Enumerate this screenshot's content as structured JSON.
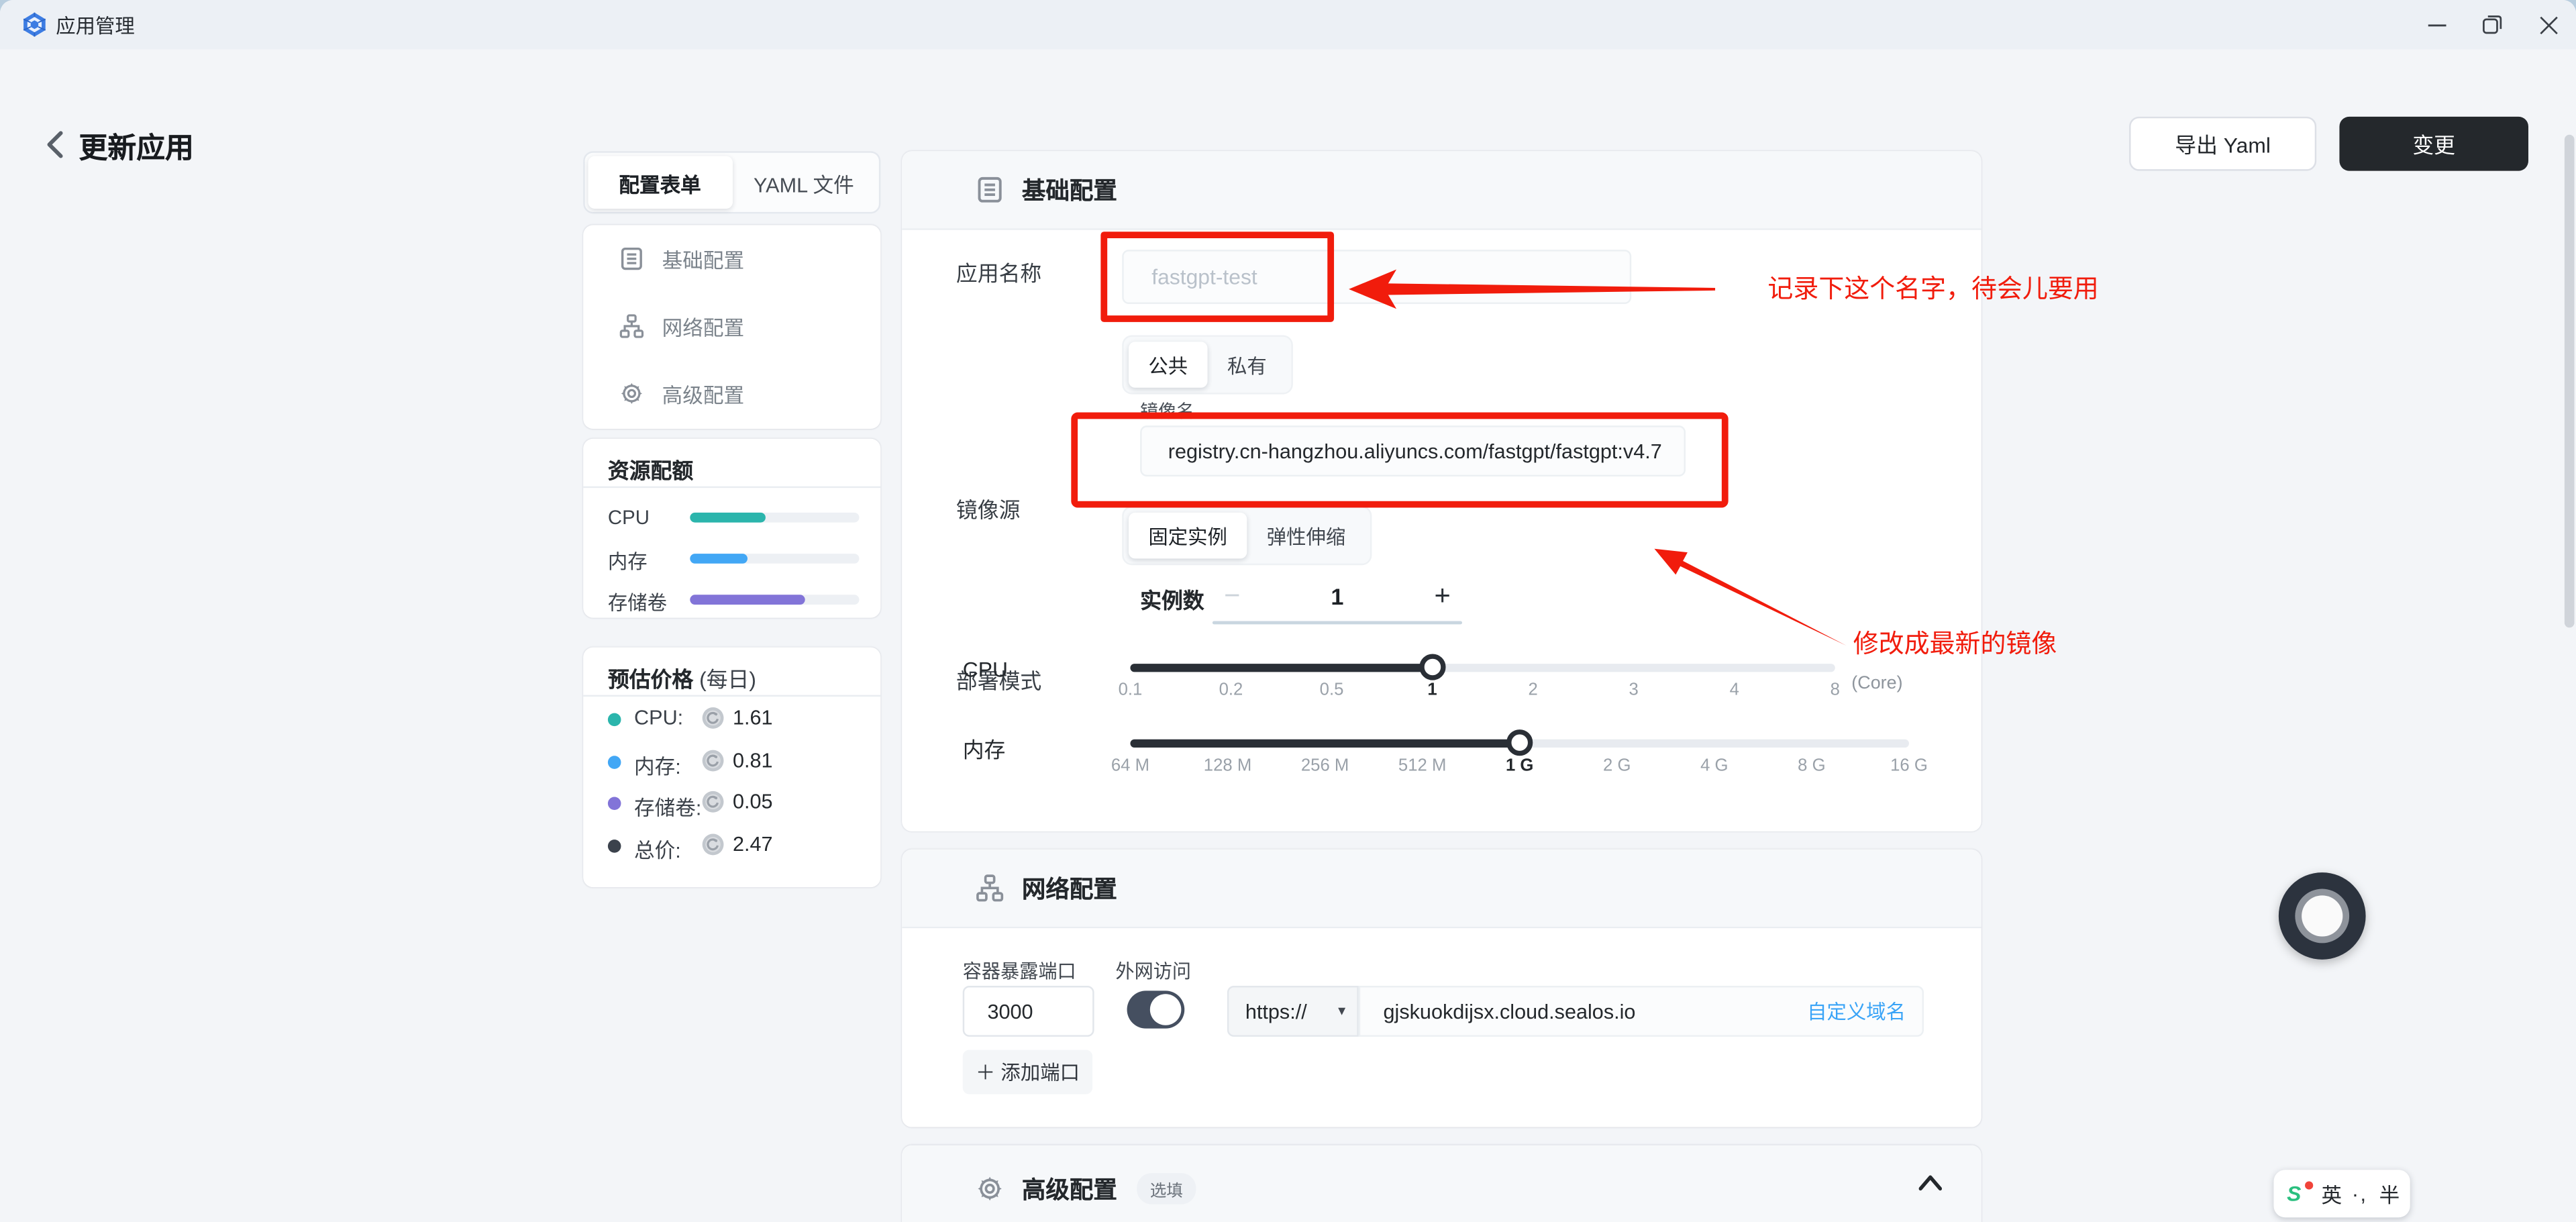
{
  "titlebar": {
    "app_title": "应用管理"
  },
  "header": {
    "page_title": "更新应用",
    "export_button": "导出 Yaml",
    "apply_button": "变更"
  },
  "sidebar": {
    "tabs": [
      {
        "label": "配置表单",
        "active": true
      },
      {
        "label": "YAML 文件",
        "active": false
      }
    ],
    "nav": [
      {
        "label": "基础配置"
      },
      {
        "label": "网络配置"
      },
      {
        "label": "高级配置"
      }
    ],
    "quota": {
      "title": "资源配额",
      "rows": [
        {
          "label": "CPU",
          "pct": "45%",
          "color": "#2bb5ac"
        },
        {
          "label": "内存",
          "pct": "34%",
          "color": "#42a7f5"
        },
        {
          "label": "存储卷",
          "pct": "68%",
          "color": "#8274d8"
        }
      ]
    },
    "price": {
      "title": "预估价格",
      "subtitle": "(每日)",
      "rows": [
        {
          "label": "CPU:",
          "value": "1.61",
          "color": "#2bb5ac"
        },
        {
          "label": "内存:",
          "value": "0.81",
          "color": "#42a7f5"
        },
        {
          "label": "存储卷:",
          "value": "0.05",
          "color": "#8274d8"
        },
        {
          "label": "总价:",
          "value": "2.47",
          "color": "#3b424c"
        }
      ]
    }
  },
  "basic": {
    "title": "基础配置",
    "app_name_label": "应用名称",
    "app_name_value": "fastgpt-test",
    "image_source_label": "镜像源",
    "image_source_tabs": [
      {
        "label": "公共",
        "active": true
      },
      {
        "label": "私有",
        "active": false
      }
    ],
    "image_name_label": "镜像名",
    "image_name_value": "registry.cn-hangzhou.aliyuncs.com/fastgpt/fastgpt:v4.7",
    "deploy_mode_label": "部署模式",
    "deploy_mode_tabs": [
      {
        "label": "固定实例",
        "active": true
      },
      {
        "label": "弹性伸缩",
        "active": false
      }
    ],
    "instances_label": "实例数",
    "instances_minus": "−",
    "instances_value": "1",
    "instances_plus": "+",
    "cpu_label": "CPU",
    "cpu_unit": "(Core)",
    "cpu_fill_pct": "42.86%",
    "cpu_ticks": [
      {
        "label": "0.1"
      },
      {
        "label": "0.2"
      },
      {
        "label": "0.5"
      },
      {
        "label": "1",
        "strong": true
      },
      {
        "label": "2"
      },
      {
        "label": "3"
      },
      {
        "label": "4"
      },
      {
        "label": "8"
      }
    ],
    "memory_label": "内存",
    "memory_fill_pct": "50%",
    "memory_ticks": [
      {
        "label": "64 M"
      },
      {
        "label": "128 M"
      },
      {
        "label": "256 M"
      },
      {
        "label": "512 M"
      },
      {
        "label": "1 G",
        "strong": true
      },
      {
        "label": "2 G"
      },
      {
        "label": "4 G"
      },
      {
        "label": "8 G"
      },
      {
        "label": "16 G"
      }
    ]
  },
  "network": {
    "title": "网络配置",
    "port_label": "容器暴露端口",
    "port_value": "3000",
    "access_label": "外网访问",
    "protocol_value": "https://",
    "domain_value": "gjskuokdijsx.cloud.sealos.io",
    "custom_domain_link": "自定义域名",
    "add_port_button": "＋ 添加端口"
  },
  "advanced": {
    "title": "高级配置",
    "optional_badge": "选填"
  },
  "annotations": {
    "note_app_name": "记录下这个名字，待会儿要用",
    "note_image": "修改成最新的镜像",
    "color": "#f11c0c"
  },
  "ime": {
    "lang": "英",
    "punct": "·,",
    "width": "半"
  }
}
